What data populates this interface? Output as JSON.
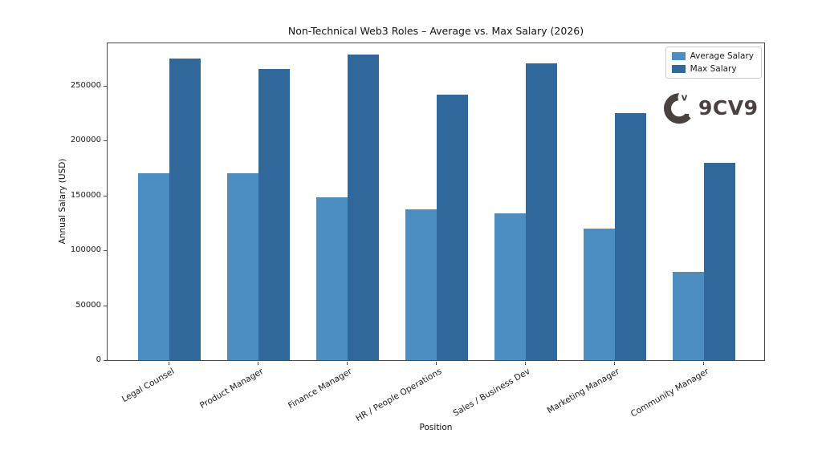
{
  "chart_data": {
    "type": "bar",
    "bar_orientation": "vertical",
    "title": "Non-Technical Web3 Roles – Average vs. Max Salary (2026)",
    "xlabel": "Position",
    "ylabel": "Annual Salary (USD)",
    "categories": [
      "Legal Counsel",
      "Product Manager",
      "Finance Manager",
      "HR / People Operations",
      "Sales / Business Dev",
      "Marketing Manager",
      "Community Manager"
    ],
    "series": [
      {
        "name": "Average Salary",
        "color": "#4c8dc2",
        "values": [
          170000,
          170000,
          148000,
          137000,
          134000,
          120000,
          80000
        ]
      },
      {
        "name": "Max Salary",
        "color": "#31689b",
        "values": [
          275000,
          265000,
          278000,
          242000,
          270000,
          225000,
          180000
        ]
      }
    ],
    "ylim": [
      0,
      290000
    ],
    "yticks": [
      0,
      50000,
      100000,
      150000,
      200000,
      250000
    ],
    "grid": false,
    "legend_position": "upper right"
  },
  "watermark": {
    "text": "9CV9",
    "mark_letter": "v",
    "color": "#4a4240"
  }
}
